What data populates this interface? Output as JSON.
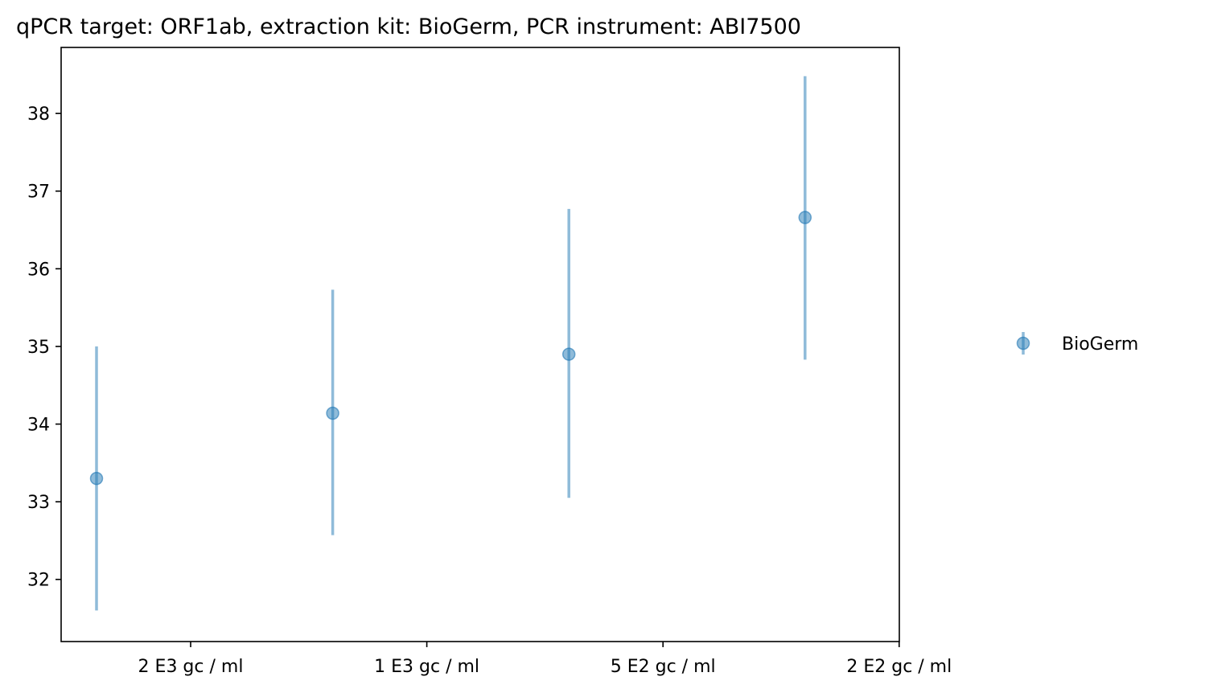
{
  "chart_data": {
    "type": "scatter",
    "title": "qPCR target: ORF1ab, extraction kit: BioGerm, PCR instrument: ABI7500",
    "xlabel": "",
    "ylabel": "",
    "categories": [
      "2 E3 gc / ml",
      "1 E3 gc / ml",
      "5 E2 gc / ml",
      "2 E2 gc / ml"
    ],
    "ylim": [
      31.2,
      38.85
    ],
    "yticks": [
      32,
      33,
      34,
      35,
      36,
      37,
      38
    ],
    "grid": false,
    "legend_position": "right",
    "series": [
      {
        "name": "BioGerm",
        "color": "#1f77b4",
        "points": [
          {
            "category": "2 E3 gc / ml",
            "y": 33.3,
            "yerr_low": 31.6,
            "yerr_high": 35.0
          },
          {
            "category": "1 E3 gc / ml",
            "y": 34.14,
            "yerr_low": 32.57,
            "yerr_high": 35.73
          },
          {
            "category": "5 E2 gc / ml",
            "y": 34.9,
            "yerr_low": 33.05,
            "yerr_high": 36.77
          },
          {
            "category": "2 E2 gc / ml",
            "y": 36.66,
            "yerr_low": 34.83,
            "yerr_high": 38.48
          }
        ]
      }
    ]
  }
}
